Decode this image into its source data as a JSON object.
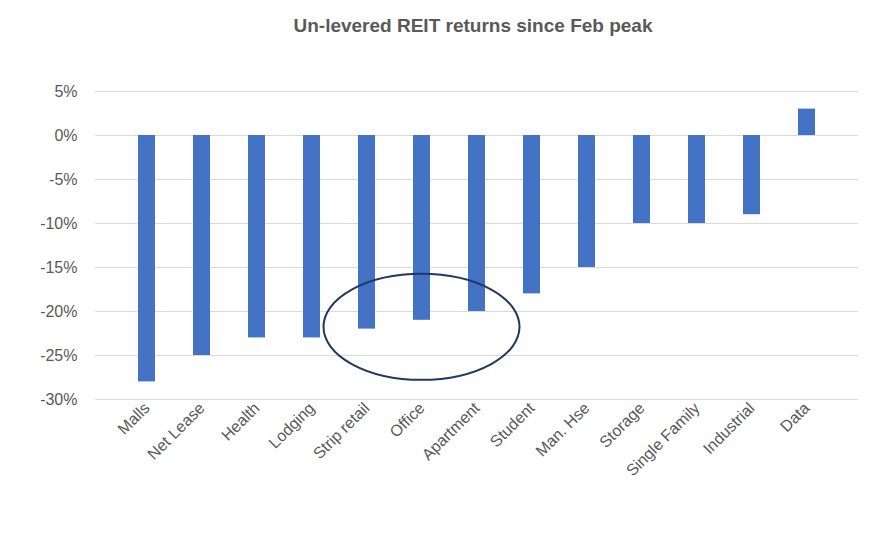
{
  "chart_data": {
    "type": "bar",
    "title": "Un-levered REIT returns since Feb peak",
    "categories": [
      "Malls",
      "Net Lease",
      "Health",
      "Lodging",
      "Strip retail",
      "Office",
      "Apartment",
      "Student",
      "Man. Hse",
      "Storage",
      "Single Family",
      "Industrial",
      "Data"
    ],
    "values": [
      -28,
      -25,
      -23,
      -23,
      -22,
      -21,
      -20,
      -18,
      -15,
      -10,
      -10,
      -9,
      3
    ],
    "color": "#4472c4",
    "ylim": [
      -30,
      5
    ],
    "yticks": [
      {
        "value": -30,
        "label": "-30%"
      },
      {
        "value": -25,
        "label": "-25%"
      },
      {
        "value": -20,
        "label": "-20%"
      },
      {
        "value": -15,
        "label": "-15%"
      },
      {
        "value": -10,
        "label": "-10%"
      },
      {
        "value": -5,
        "label": "-5%"
      },
      {
        "value": 0,
        "label": "0%"
      },
      {
        "value": 5,
        "label": "5%"
      }
    ],
    "grid": true
  }
}
